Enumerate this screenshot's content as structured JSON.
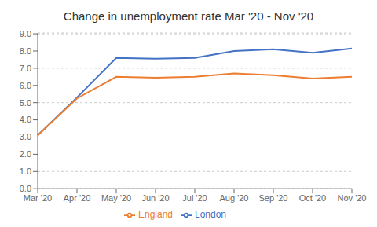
{
  "chart_data": {
    "type": "line",
    "title": "Change in unemployment rate Mar '20 - Nov '20",
    "categories": [
      "Mar '20",
      "Apr '20",
      "May '20",
      "Jun '20",
      "Jul '20",
      "Aug '20",
      "Sep '20",
      "Oct '20",
      "Nov '20"
    ],
    "series": [
      {
        "name": "London",
        "color": "#4472C4",
        "values": [
          3.1,
          5.3,
          7.6,
          7.55,
          7.6,
          8.0,
          8.1,
          7.9,
          8.15
        ]
      },
      {
        "name": "England",
        "color": "#ED7D31",
        "values": [
          3.1,
          5.25,
          6.5,
          6.45,
          6.5,
          6.7,
          6.6,
          6.4,
          6.5
        ]
      }
    ],
    "ylim": [
      0,
      9.05
    ],
    "yticks": [
      {
        "value": 0,
        "label": "0.0"
      },
      {
        "value": 1,
        "label": "1.0"
      },
      {
        "value": 2,
        "label": "2.0"
      },
      {
        "value": 3,
        "label": "3.0"
      },
      {
        "value": 4,
        "label": "4.0"
      },
      {
        "value": 5,
        "label": "5.0"
      },
      {
        "value": 6,
        "label": "6.0"
      },
      {
        "value": 7,
        "label": "7.0"
      },
      {
        "value": 8,
        "label": "8.0"
      },
      {
        "value": 9,
        "label": "9.0"
      }
    ],
    "grid": true,
    "legend": "bottom"
  }
}
